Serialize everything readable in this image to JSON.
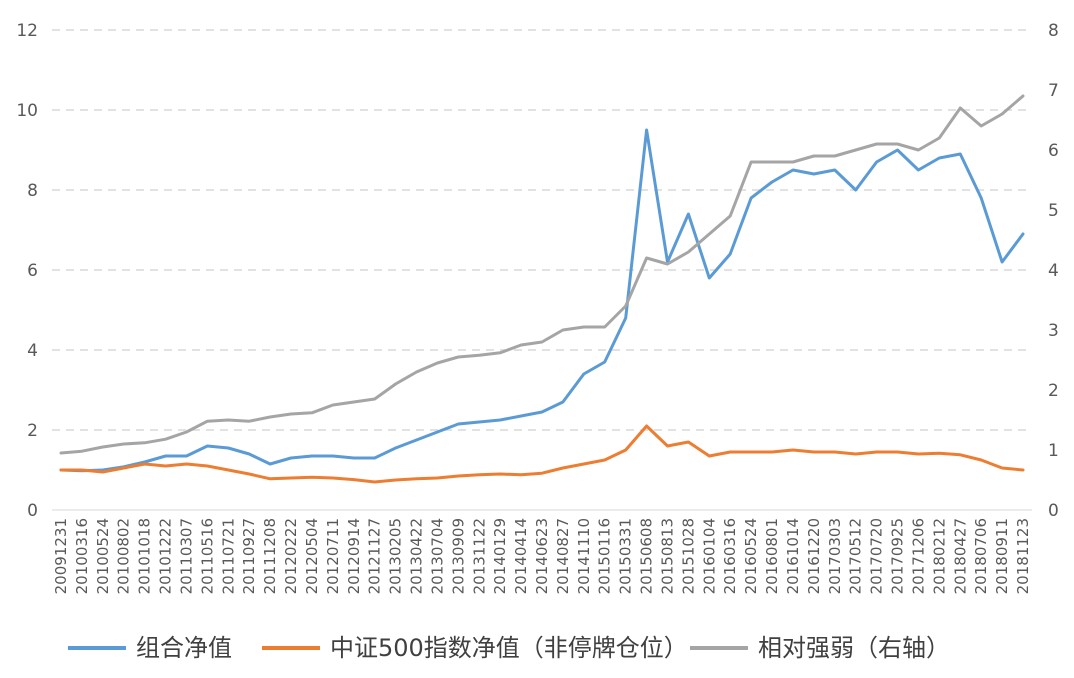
{
  "chart_data": {
    "type": "line",
    "title": "",
    "xlabel": "",
    "ylabel": "",
    "ylim": [
      0,
      12
    ],
    "y2lim": [
      0,
      8
    ],
    "yticks": [
      0,
      2,
      4,
      6,
      8,
      10,
      12
    ],
    "y2ticks": [
      0,
      1,
      2,
      3,
      4,
      5,
      6,
      7,
      8
    ],
    "grid": "horizontal dashed",
    "legend_position": "bottom",
    "x_ticks": [
      "20091231",
      "20100316",
      "20100524",
      "20100802",
      "20101018",
      "20101222",
      "20110307",
      "20110516",
      "20110721",
      "20110927",
      "20111208",
      "20120222",
      "20120504",
      "20120711",
      "20120914",
      "20121127",
      "20130205",
      "20130422",
      "20130704",
      "20130909",
      "20131122",
      "20140129",
      "20140414",
      "20140623",
      "20140827",
      "20141110",
      "20150116",
      "20150331",
      "20150608",
      "20150813",
      "20151028",
      "20160104",
      "20160316",
      "20160524",
      "20160801",
      "20161014",
      "20161220",
      "20170303",
      "20170512",
      "20170720",
      "20170925",
      "20171206",
      "20180212",
      "20180427",
      "20180706",
      "20180911",
      "20181123"
    ],
    "series": [
      {
        "name": "组合净值",
        "axis": "left",
        "color": "#5B9BD5",
        "values": [
          1.0,
          0.98,
          1.0,
          1.08,
          1.2,
          1.35,
          1.35,
          1.6,
          1.55,
          1.4,
          1.15,
          1.3,
          1.35,
          1.35,
          1.3,
          1.3,
          1.55,
          1.75,
          1.95,
          2.15,
          2.2,
          2.25,
          2.35,
          2.45,
          2.7,
          3.4,
          3.7,
          4.8,
          9.5,
          6.2,
          7.4,
          5.8,
          6.4,
          7.8,
          8.2,
          8.5,
          8.4,
          8.5,
          8.0,
          8.7,
          9.0,
          8.5,
          8.8,
          8.9,
          7.8,
          6.2,
          6.9
        ]
      },
      {
        "name": "中证500指数净值（非停牌仓位）",
        "axis": "left",
        "color": "#ED7D31",
        "values": [
          1.0,
          1.0,
          0.95,
          1.05,
          1.15,
          1.1,
          1.15,
          1.1,
          1.0,
          0.9,
          0.78,
          0.8,
          0.82,
          0.8,
          0.76,
          0.7,
          0.75,
          0.78,
          0.8,
          0.85,
          0.88,
          0.9,
          0.88,
          0.92,
          1.05,
          1.15,
          1.25,
          1.5,
          2.1,
          1.6,
          1.7,
          1.35,
          1.45,
          1.45,
          1.45,
          1.5,
          1.45,
          1.45,
          1.4,
          1.45,
          1.45,
          1.4,
          1.42,
          1.38,
          1.25,
          1.05,
          1.0
        ]
      },
      {
        "name": "相对强弱（右轴）",
        "axis": "right",
        "color": "#A5A5A5",
        "values": [
          0.95,
          0.98,
          1.05,
          1.1,
          1.12,
          1.18,
          1.3,
          1.48,
          1.5,
          1.48,
          1.55,
          1.6,
          1.62,
          1.75,
          1.8,
          1.85,
          2.1,
          2.3,
          2.45,
          2.55,
          2.58,
          2.62,
          2.75,
          2.8,
          3.0,
          3.05,
          3.05,
          3.4,
          4.2,
          4.1,
          4.3,
          4.6,
          4.9,
          5.8,
          5.8,
          5.8,
          5.9,
          5.9,
          6.0,
          6.1,
          6.1,
          6.0,
          6.2,
          6.7,
          6.4,
          6.6,
          6.9
        ]
      }
    ]
  }
}
